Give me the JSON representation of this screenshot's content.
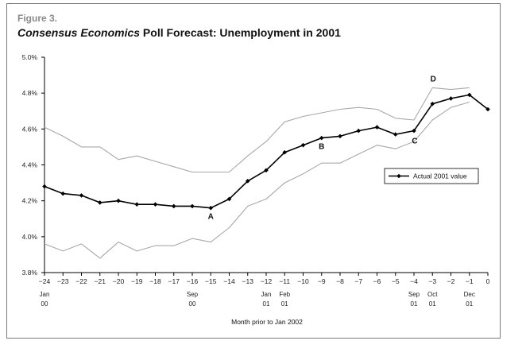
{
  "figure_label": "Figure 3.",
  "title_italic": "Consensus Economics",
  "title_rest": " Poll Forecast: Unemployment in 2001",
  "chart_data": {
    "type": "line",
    "xlabel": "Month prior to Jan 2002",
    "ylabel": "",
    "x": [
      -24,
      -23,
      -22,
      -21,
      -20,
      -19,
      -18,
      -17,
      -16,
      -15,
      -14,
      -13,
      -12,
      -11,
      -10,
      -9,
      -8,
      -7,
      -6,
      -5,
      -4,
      -3,
      -2,
      -1,
      0
    ],
    "xlim": [
      -24,
      0
    ],
    "ylim": [
      3.8,
      5.0
    ],
    "y_ticks": [
      "3.8%",
      "4.0%",
      "4.2%",
      "4.4%",
      "4.6%",
      "4.8%",
      "5.0%"
    ],
    "y_tick_values": [
      3.8,
      4.0,
      4.2,
      4.4,
      4.6,
      4.8,
      5.0
    ],
    "x_tick_labels": [
      "−24",
      "−23",
      "−22",
      "−21",
      "−20",
      "−19",
      "−18",
      "−17",
      "−16",
      "−15",
      "−14",
      "−13",
      "−12",
      "−11",
      "−10",
      "−9",
      "−8",
      "−7",
      "−6",
      "−5",
      "−4",
      "−3",
      "−2",
      "−1",
      "0"
    ],
    "month_labels": [
      {
        "x": -24,
        "line1": "Jan",
        "line2": "00"
      },
      {
        "x": -16,
        "line1": "Sep",
        "line2": "00"
      },
      {
        "x": -12,
        "line1": "Jan",
        "line2": "01"
      },
      {
        "x": -11,
        "line1": "Feb",
        "line2": "01"
      },
      {
        "x": -4,
        "line1": "Sep",
        "line2": "01"
      },
      {
        "x": -3,
        "line1": "Oct",
        "line2": "01"
      },
      {
        "x": -1,
        "line1": "Dec",
        "line2": "01"
      }
    ],
    "series": [
      {
        "name": "Actual 2001 value",
        "color": "#000000",
        "role": "main",
        "x": [
          -24,
          -23,
          -22,
          -21,
          -20,
          -19,
          -18,
          -17,
          -16,
          -15,
          -14,
          -13,
          -12,
          -11,
          -10,
          -9,
          -8,
          -7,
          -6,
          -5,
          -4,
          -3,
          -2,
          -1,
          0
        ],
        "values": [
          4.28,
          4.24,
          4.23,
          4.19,
          4.2,
          4.18,
          4.18,
          4.17,
          4.17,
          4.16,
          4.21,
          4.31,
          4.37,
          4.47,
          4.51,
          4.55,
          4.56,
          4.59,
          4.61,
          4.57,
          4.59,
          4.74,
          4.77,
          4.79,
          4.71
        ]
      },
      {
        "color": "#a8a8a8",
        "role": "upper-band",
        "x": [
          -24,
          -23,
          -22,
          -21,
          -20,
          -19,
          -18,
          -17,
          -16,
          -15,
          -14,
          -13,
          -12,
          -11,
          -10,
          -9,
          -8,
          -7,
          -6,
          -5,
          -4,
          -3,
          -2,
          -1
        ],
        "values": [
          4.61,
          4.56,
          4.5,
          4.5,
          4.43,
          4.45,
          4.42,
          4.39,
          4.36,
          4.36,
          4.36,
          4.45,
          4.53,
          4.64,
          4.67,
          4.69,
          4.71,
          4.72,
          4.71,
          4.66,
          4.65,
          4.83,
          4.82,
          4.83
        ]
      },
      {
        "color": "#a8a8a8",
        "role": "lower-band",
        "x": [
          -24,
          -23,
          -22,
          -21,
          -20,
          -19,
          -18,
          -17,
          -16,
          -15,
          -14,
          -13,
          -12,
          -11,
          -10,
          -9,
          -8,
          -7,
          -6,
          -5,
          -4,
          -3,
          -2,
          -1
        ],
        "values": [
          3.96,
          3.92,
          3.96,
          3.88,
          3.97,
          3.92,
          3.95,
          3.95,
          3.99,
          3.97,
          4.05,
          4.17,
          4.21,
          4.3,
          4.35,
          4.41,
          4.41,
          4.46,
          4.51,
          4.49,
          4.53,
          4.65,
          4.72,
          4.75
        ]
      }
    ],
    "annotations": [
      {
        "text": "A",
        "x": -15,
        "y": 4.16
      },
      {
        "text": "B",
        "x": -9,
        "y": 4.55
      },
      {
        "text": "C",
        "x": -4,
        "y": 4.59
      },
      {
        "text": "D",
        "x": -3,
        "y": 4.83
      }
    ],
    "legend": {
      "position": "right",
      "entries": [
        "Actual 2001 value"
      ]
    },
    "grid": false
  }
}
